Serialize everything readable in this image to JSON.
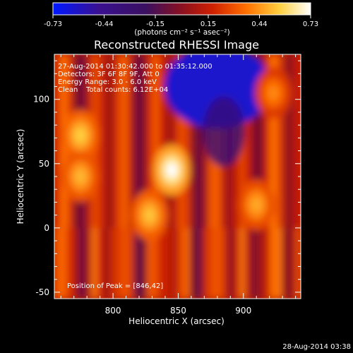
{
  "figure": {
    "title": "Reconstructed RHESSI Image",
    "footer_timestamp": "28-Aug-2014 03:38"
  },
  "colorbar": {
    "ticks": [
      "-0.73",
      "-0.44",
      "-0.15",
      "0.15",
      "0.44",
      "0.73"
    ],
    "min": -0.73,
    "max": 0.73
  },
  "annotations": {
    "time_range": "27-Aug-2014 01:30:42.000 to 01:35:12.000",
    "detectors": "Detectors: 3F 6F 8F 9F, Att 0",
    "energy_range": "Energy Range: 3.0 - 6.0 keV",
    "clean_label": "Clean",
    "total_counts": "Total counts: 6.12E+04",
    "peak_position": "Position of Peak = [846,42]"
  },
  "chart_data": {
    "type": "heatmap",
    "title": "Reconstructed RHESSI Image",
    "xlabel": "Heliocentric X (arcsec)",
    "ylabel": "Heliocentric Y (arcsec)",
    "xlim": [
      755,
      944
    ],
    "ylim": [
      -55,
      135
    ],
    "x_ticks": [
      800,
      850,
      900
    ],
    "y_ticks": [
      -50,
      0,
      50,
      100
    ],
    "colorbar_label": "(photons cm⁻² s⁻¹ asec⁻²)",
    "colorbar_range": [
      -0.73,
      0.73
    ],
    "colormap": "blue-purple-red-yellow-white (IDL color table 3 style)",
    "peak": {
      "x": 846,
      "y": 42
    },
    "sources": [
      {
        "x": 845,
        "y": 45,
        "level": 0.73
      },
      {
        "x": 775,
        "y": 72,
        "level": 0.5
      },
      {
        "x": 775,
        "y": 40,
        "level": 0.45
      },
      {
        "x": 828,
        "y": 10,
        "level": 0.48
      },
      {
        "x": 910,
        "y": 18,
        "level": 0.42
      },
      {
        "x": 923,
        "y": 105,
        "level": 0.35
      }
    ],
    "negative_region": {
      "x": 880,
      "y": 110,
      "level": -0.6
    }
  }
}
